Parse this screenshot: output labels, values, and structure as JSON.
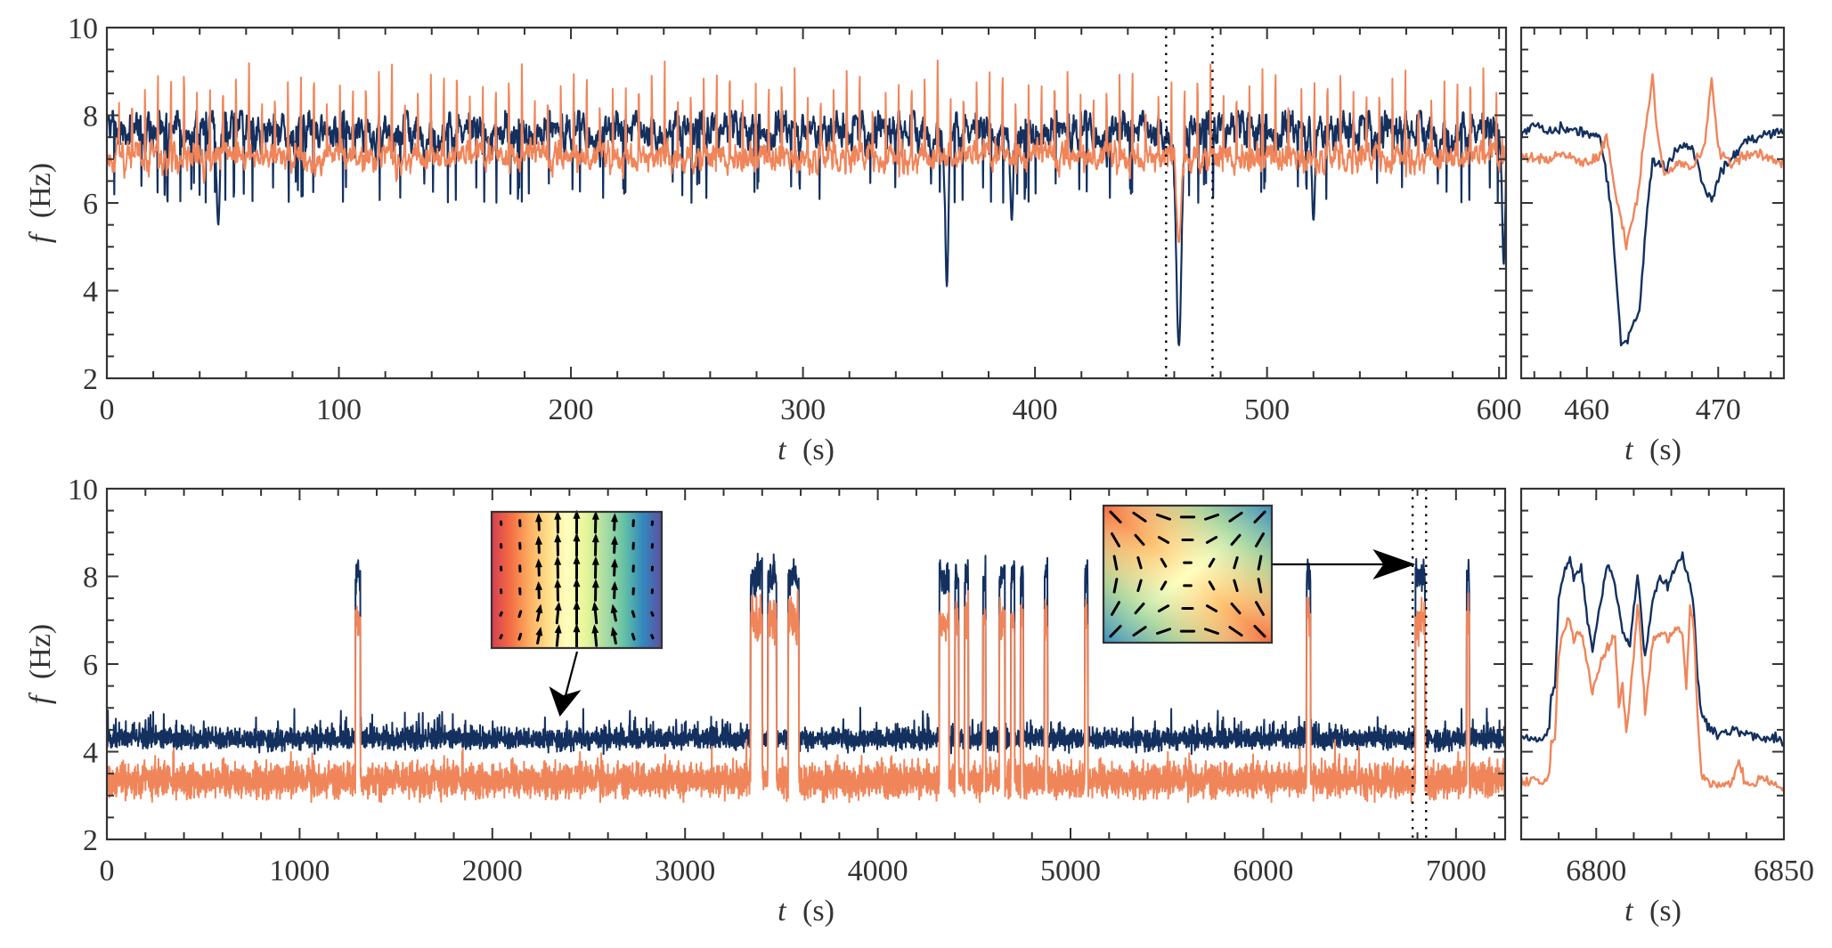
{
  "colors": {
    "series_a": "#13305f",
    "series_b": "#f0855a",
    "axis": "#333333",
    "marker_line": "#000000"
  },
  "chart_data": [
    {
      "id": "top_main",
      "type": "line",
      "xlabel_var": "t",
      "xlabel_unit": "(s)",
      "ylabel_var": "f",
      "ylabel_unit": "(Hz)",
      "xlim": [
        0,
        603
      ],
      "ylim": [
        2,
        10
      ],
      "xticks": [
        0,
        100,
        200,
        300,
        400,
        500,
        600
      ],
      "yticks": [
        2,
        4,
        6,
        8,
        10
      ],
      "x_minor_step": 20,
      "y_minor_step": 0.5,
      "markers": [
        456.5,
        476.5
      ],
      "series": [
        {
          "name": "blue",
          "baseline": [
            6.6,
            8.1
          ],
          "mean": 7.4,
          "dips": [
            [
              48,
              5.5
            ],
            [
              362,
              4.1
            ],
            [
              390,
              5.6
            ],
            [
              462,
              2.75
            ],
            [
              520,
              5.6
            ],
            [
              602,
              4.6
            ]
          ]
        },
        {
          "name": "orange",
          "baseline": [
            6.3,
            7.8
          ],
          "mean": 7.05,
          "spike_period": 5.6,
          "spike_peak": [
            8.5,
            9.3
          ],
          "dips": [
            [
              462,
              5.1
            ]
          ]
        }
      ]
    },
    {
      "id": "top_zoom",
      "type": "line",
      "xlabel_var": "t",
      "xlabel_unit": "(s)",
      "xlim": [
        455,
        475
      ],
      "ylim": [
        2,
        10
      ],
      "xticks": [
        460,
        470
      ],
      "x_minor_step": 2,
      "y_minor_step": 0.5,
      "series": [
        {
          "name": "blue",
          "points": [
            [
              455,
              7.5
            ],
            [
              456,
              7.8
            ],
            [
              457,
              7.6
            ],
            [
              458,
              7.7
            ],
            [
              460,
              7.6
            ],
            [
              461,
              7.5
            ],
            [
              461.8,
              6.0
            ],
            [
              462.3,
              4.0
            ],
            [
              462.6,
              2.9
            ],
            [
              463,
              2.8
            ],
            [
              463.5,
              3.3
            ],
            [
              464,
              3.5
            ],
            [
              464.5,
              5.5
            ],
            [
              465,
              7.0
            ],
            [
              466,
              6.8
            ],
            [
              467,
              7.3
            ],
            [
              468,
              7.3
            ],
            [
              468.8,
              6.5
            ],
            [
              469.5,
              6.0
            ],
            [
              470,
              6.6
            ],
            [
              471,
              7.0
            ],
            [
              472,
              7.4
            ],
            [
              473,
              7.5
            ],
            [
              474,
              7.6
            ],
            [
              475,
              7.6
            ]
          ]
        },
        {
          "name": "orange",
          "points": [
            [
              455,
              7.1
            ],
            [
              456,
              7.0
            ],
            [
              457,
              7.0
            ],
            [
              458,
              7.1
            ],
            [
              460,
              6.9
            ],
            [
              461,
              7.1
            ],
            [
              461.5,
              7.5
            ],
            [
              462.3,
              6.0
            ],
            [
              463,
              5.1
            ],
            [
              463.8,
              6.0
            ],
            [
              464.5,
              7.8
            ],
            [
              465,
              8.9
            ],
            [
              465.4,
              7.5
            ],
            [
              466,
              6.6
            ],
            [
              467,
              6.9
            ],
            [
              468,
              6.8
            ],
            [
              469,
              7.3
            ],
            [
              469.5,
              8.9
            ],
            [
              470,
              7.2
            ],
            [
              471,
              6.9
            ],
            [
              472,
              7.1
            ],
            [
              473,
              7.1
            ],
            [
              474,
              7.0
            ],
            [
              475,
              6.9
            ]
          ]
        }
      ]
    },
    {
      "id": "bottom_main",
      "type": "line",
      "xlabel_var": "t",
      "xlabel_unit": "(s)",
      "ylabel_var": "f",
      "ylabel_unit": "(Hz)",
      "xlim": [
        0,
        7255
      ],
      "ylim": [
        2,
        10
      ],
      "xticks": [
        0,
        1000,
        2000,
        3000,
        4000,
        5000,
        6000,
        7000
      ],
      "yticks": [
        2,
        4,
        6,
        8,
        10
      ],
      "x_minor_step": 200,
      "y_minor_step": 0.5,
      "markers": [
        6775,
        6845
      ],
      "series": [
        {
          "name": "blue",
          "baseline": [
            4.0,
            4.8
          ],
          "burst_level": 8.0
        },
        {
          "name": "orange",
          "baseline": [
            2.9,
            3.9
          ],
          "burst_level": 7.0
        }
      ],
      "bursts": [
        [
          1290,
          1315
        ],
        [
          3340,
          3400
        ],
        [
          3430,
          3475
        ],
        [
          3535,
          3590
        ],
        [
          4320,
          4370
        ],
        [
          4400,
          4420
        ],
        [
          4450,
          4470
        ],
        [
          4545,
          4560
        ],
        [
          4630,
          4660
        ],
        [
          4690,
          4710
        ],
        [
          4740,
          4755
        ],
        [
          4865,
          4880
        ],
        [
          5075,
          5090
        ],
        [
          6225,
          6245
        ],
        [
          6790,
          6840
        ],
        [
          7055,
          7070
        ]
      ],
      "insets": [
        {
          "name": "inset-vortex-flow",
          "pattern": "jet",
          "colormap": [
            "#d53e4f",
            "#f46d43",
            "#fdae61",
            "#fee08b",
            "#ffffbf",
            "#e6f598",
            "#abdda4",
            "#66c2a5",
            "#3288bd",
            "#5e4fa2"
          ],
          "points_to_t": 2350,
          "points_to_f": 4.8
        },
        {
          "name": "inset-saddle-flow",
          "pattern": "saddle",
          "colormap": [
            "#f46d43",
            "#fdae61",
            "#fee08b",
            "#ffffbf",
            "#e6f598",
            "#abdda4",
            "#66c2a5",
            "#3288bd"
          ],
          "points_to_t": 6790,
          "points_to_f": 8.3
        }
      ]
    },
    {
      "id": "bottom_zoom",
      "type": "line",
      "xlabel_var": "t",
      "xlabel_unit": "(s)",
      "xlim": [
        6780,
        6850
      ],
      "ylim": [
        2,
        10
      ],
      "xticks": [
        6800,
        6850
      ],
      "x_minor_step": 10,
      "y_minor_step": 0.5,
      "series": [
        {
          "name": "blue",
          "points": [
            [
              6780,
              4.4
            ],
            [
              6783,
              4.3
            ],
            [
              6786,
              4.3
            ],
            [
              6787.5,
              4.5
            ],
            [
              6788,
              5.3
            ],
            [
              6789,
              5.5
            ],
            [
              6790,
              7.5
            ],
            [
              6791,
              7.9
            ],
            [
              6793,
              8.5
            ],
            [
              6794,
              7.9
            ],
            [
              6796,
              8.2
            ],
            [
              6798,
              6.8
            ],
            [
              6799,
              6.3
            ],
            [
              6801,
              7.3
            ],
            [
              6803,
              8.3
            ],
            [
              6805,
              7.8
            ],
            [
              6807,
              6.8
            ],
            [
              6809,
              6.4
            ],
            [
              6810,
              7.3
            ],
            [
              6811,
              8.0
            ],
            [
              6812,
              7.2
            ],
            [
              6813,
              6.1
            ],
            [
              6815,
              7.5
            ],
            [
              6817,
              8.0
            ],
            [
              6819,
              7.8
            ],
            [
              6821,
              8.2
            ],
            [
              6823,
              8.5
            ],
            [
              6825,
              7.8
            ],
            [
              6826,
              7.2
            ],
            [
              6827,
              5.8
            ],
            [
              6828,
              4.8
            ],
            [
              6830,
              4.6
            ],
            [
              6833,
              4.4
            ],
            [
              6836,
              4.5
            ],
            [
              6840,
              4.4
            ],
            [
              6844,
              4.3
            ],
            [
              6847,
              4.3
            ],
            [
              6850,
              4.2
            ]
          ]
        },
        {
          "name": "orange",
          "points": [
            [
              6780,
              3.3
            ],
            [
              6783,
              3.4
            ],
            [
              6786,
              3.3
            ],
            [
              6787.5,
              3.4
            ],
            [
              6788,
              4.2
            ],
            [
              6789,
              4.3
            ],
            [
              6790,
              6.2
            ],
            [
              6791,
              6.7
            ],
            [
              6793,
              7.0
            ],
            [
              6794,
              6.5
            ],
            [
              6796,
              6.8
            ],
            [
              6798,
              5.8
            ],
            [
              6799,
              5.4
            ],
            [
              6801,
              6.0
            ],
            [
              6803,
              6.4
            ],
            [
              6805,
              6.7
            ],
            [
              6806,
              5.0
            ],
            [
              6807,
              5.5
            ],
            [
              6808,
              4.4
            ],
            [
              6810,
              6.2
            ],
            [
              6811,
              7.4
            ],
            [
              6812,
              6.3
            ],
            [
              6813,
              4.9
            ],
            [
              6815,
              6.5
            ],
            [
              6817,
              6.7
            ],
            [
              6819,
              6.6
            ],
            [
              6821,
              6.8
            ],
            [
              6823,
              6.7
            ],
            [
              6824,
              5.4
            ],
            [
              6825,
              7.3
            ],
            [
              6826,
              6.8
            ],
            [
              6827,
              4.8
            ],
            [
              6828,
              3.5
            ],
            [
              6830,
              3.3
            ],
            [
              6833,
              3.2
            ],
            [
              6836,
              3.3
            ],
            [
              6838,
              3.8
            ],
            [
              6840,
              3.2
            ],
            [
              6844,
              3.4
            ],
            [
              6847,
              3.3
            ],
            [
              6850,
              3.2
            ]
          ]
        }
      ]
    }
  ]
}
